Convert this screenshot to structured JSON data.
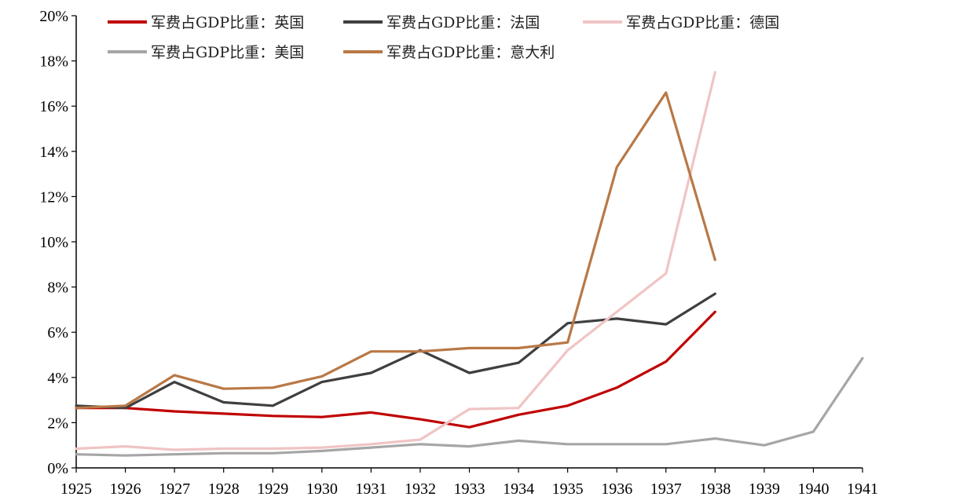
{
  "chart_data": {
    "type": "line",
    "x": [
      "1925",
      "1926",
      "1927",
      "1928",
      "1929",
      "1930",
      "1931",
      "1932",
      "1933",
      "1934",
      "1935",
      "1936",
      "1937",
      "1938",
      "1939",
      "1940",
      "1941"
    ],
    "ylim": [
      0,
      20
    ],
    "yticks": [
      "0%",
      "2%",
      "4%",
      "6%",
      "8%",
      "10%",
      "12%",
      "14%",
      "16%",
      "18%",
      "20%"
    ],
    "grid": false,
    "legend_position": "top",
    "series": [
      {
        "name": "军费占GDP比重：英国",
        "color": "#c00000",
        "values": [
          2.65,
          2.65,
          2.5,
          2.4,
          2.3,
          2.25,
          2.45,
          2.15,
          1.8,
          2.35,
          2.75,
          3.55,
          4.7,
          6.9,
          null,
          null,
          null
        ]
      },
      {
        "name": "军费占GDP比重：法国",
        "color": "#3f3f3f",
        "values": [
          2.75,
          2.65,
          3.8,
          2.9,
          2.75,
          3.8,
          4.2,
          5.2,
          4.2,
          4.65,
          6.4,
          6.6,
          6.35,
          7.7,
          null,
          null,
          null
        ]
      },
      {
        "name": "军费占GDP比重：德国",
        "color": "#f0c4c4",
        "values": [
          0.85,
          0.95,
          0.8,
          0.85,
          0.85,
          0.9,
          1.05,
          1.25,
          2.6,
          2.65,
          5.2,
          6.9,
          8.6,
          17.5,
          null,
          null,
          null
        ]
      },
      {
        "name": "军费占GDP比重：美国",
        "color": "#a6a6a6",
        "values": [
          0.6,
          0.55,
          0.6,
          0.65,
          0.65,
          0.75,
          0.9,
          1.05,
          0.95,
          1.2,
          1.05,
          1.05,
          1.05,
          1.3,
          1.0,
          1.6,
          4.85
        ]
      },
      {
        "name": "军费占GDP比重：意大利",
        "color": "#b97845",
        "values": [
          2.65,
          2.75,
          4.1,
          3.5,
          3.55,
          4.05,
          5.15,
          5.15,
          5.3,
          5.3,
          5.55,
          13.3,
          16.6,
          9.2,
          null,
          null,
          null
        ]
      }
    ]
  }
}
